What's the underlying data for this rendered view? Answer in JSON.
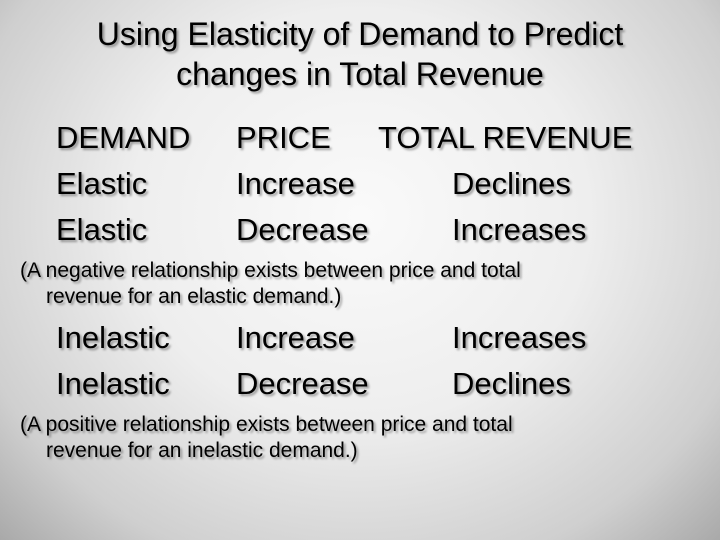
{
  "title": {
    "line1": "Using Elasticity of Demand to Predict",
    "line2": "changes in Total Revenue"
  },
  "headers": {
    "demand": "DEMAND",
    "price": "PRICE",
    "total_revenue": "TOTAL REVENUE"
  },
  "elastic_rows": [
    {
      "demand": "Elastic",
      "price": "Increase",
      "revenue": "Declines"
    },
    {
      "demand": "Elastic",
      "price": "Decrease",
      "revenue": "Increases"
    }
  ],
  "elastic_note": {
    "line1": "(A negative relationship exists between price and total",
    "line2": "revenue for an elastic demand.)"
  },
  "inelastic_rows": [
    {
      "demand": "Inelastic",
      "price": "Increase",
      "revenue": "Increases"
    },
    {
      "demand": "Inelastic",
      "price": "Decrease",
      "revenue": "Declines"
    }
  ],
  "inelastic_note": {
    "line1": "(A positive relationship exists between price and total",
    "line2": "revenue for an inelastic demand.)"
  }
}
